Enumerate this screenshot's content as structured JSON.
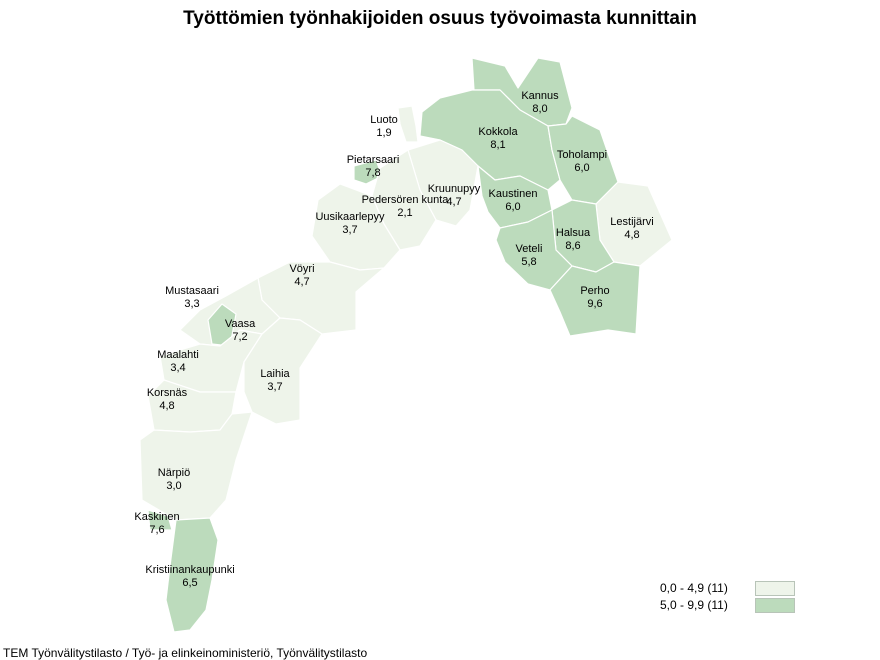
{
  "title": "Työttömien työnhakijoiden osuus työvoimasta kunnittain",
  "source": "TEM Työnvälitystilasto / Työ- ja elinkeinoministeriö, Työnvälitystilasto",
  "colors": {
    "low": "#eef4ea",
    "high": "#bcdbbc",
    "border": "#ffffff"
  },
  "legend": [
    {
      "label": "0,0 - 4,9 (11)",
      "class": "low"
    },
    {
      "label": "5,0 - 9,9 (11)",
      "class": "high"
    }
  ],
  "municipalities": [
    {
      "name": "Kannus",
      "value": "8,0",
      "class": "high"
    },
    {
      "name": "Kokkola",
      "value": "8,1",
      "class": "high"
    },
    {
      "name": "Luoto",
      "value": "1,9",
      "class": "low"
    },
    {
      "name": "Toholampi",
      "value": "6,0",
      "class": "high"
    },
    {
      "name": "Pietarsaari",
      "value": "7,8",
      "class": "high"
    },
    {
      "name": "Kruunupyy",
      "value": "4,7",
      "class": "low"
    },
    {
      "name": "Pedersören kunta",
      "value": "2,1",
      "class": "low"
    },
    {
      "name": "Kaustinen",
      "value": "6,0",
      "class": "high"
    },
    {
      "name": "Lestijärvi",
      "value": "4,8",
      "class": "low"
    },
    {
      "name": "Uusikaarlepyy",
      "value": "3,7",
      "class": "low"
    },
    {
      "name": "Halsua",
      "value": "8,6",
      "class": "high"
    },
    {
      "name": "Veteli",
      "value": "5,8",
      "class": "high"
    },
    {
      "name": "Vöyri",
      "value": "4,7",
      "class": "low"
    },
    {
      "name": "Perho",
      "value": "9,6",
      "class": "high"
    },
    {
      "name": "Mustasaari",
      "value": "3,3",
      "class": "low"
    },
    {
      "name": "Vaasa",
      "value": "7,2",
      "class": "high"
    },
    {
      "name": "Maalahti",
      "value": "3,4",
      "class": "low"
    },
    {
      "name": "Laihia",
      "value": "3,7",
      "class": "low"
    },
    {
      "name": "Korsnäs",
      "value": "4,8",
      "class": "low"
    },
    {
      "name": "Närpiö",
      "value": "3,0",
      "class": "low"
    },
    {
      "name": "Kaskinen",
      "value": "7,6",
      "class": "high"
    },
    {
      "name": "Kristiinankaupunki",
      "value": "6,5",
      "class": "high"
    }
  ]
}
